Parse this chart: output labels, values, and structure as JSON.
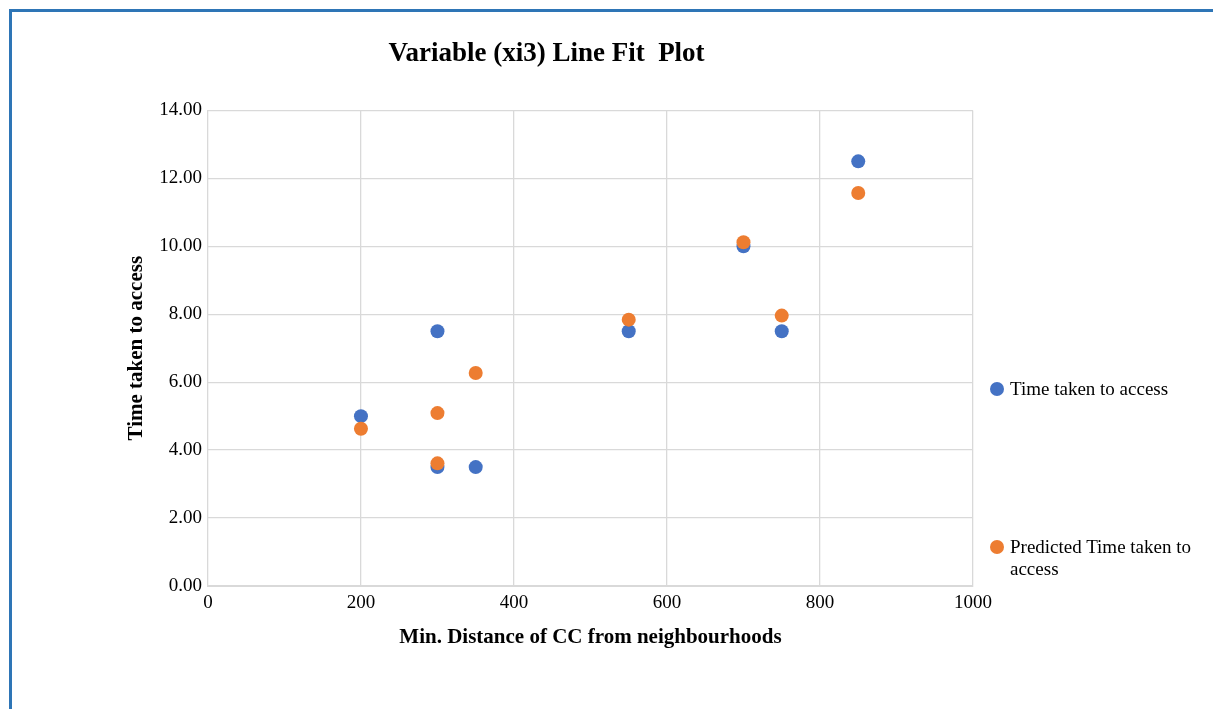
{
  "chart_data": {
    "type": "scatter",
    "title": "Variable (xi3) Line Fit  Plot",
    "xlabel": "Min. Distance of CC from neighbourhoods",
    "ylabel": "Time taken to access",
    "x": [
      200,
      300,
      300,
      350,
      550,
      700,
      750,
      850
    ],
    "series": [
      {
        "name": "Time taken to access",
        "color": "#4472c4",
        "values": [
          5.0,
          7.5,
          3.5,
          3.5,
          7.5,
          10.0,
          7.5,
          12.5
        ]
      },
      {
        "name": "Predicted Time taken to access",
        "color": "#ed7d31",
        "values": [
          4.63,
          5.09,
          3.61,
          6.27,
          7.84,
          10.12,
          7.96,
          11.57
        ]
      }
    ],
    "xlim": [
      0,
      1000
    ],
    "xticks": [
      0,
      200,
      400,
      600,
      800,
      1000
    ],
    "ylim": [
      0,
      14
    ],
    "yticks": [
      {
        "value": 0,
        "label": "0.00"
      },
      {
        "value": 2,
        "label": "2.00"
      },
      {
        "value": 4,
        "label": "4.00"
      },
      {
        "value": 6,
        "label": "6.00"
      },
      {
        "value": 8,
        "label": "8.00"
      },
      {
        "value": 10,
        "label": "10.00"
      },
      {
        "value": 12,
        "label": "12.00"
      },
      {
        "value": 14,
        "label": "14.00"
      }
    ],
    "grid": true,
    "legend": "right",
    "marker": "circle"
  }
}
